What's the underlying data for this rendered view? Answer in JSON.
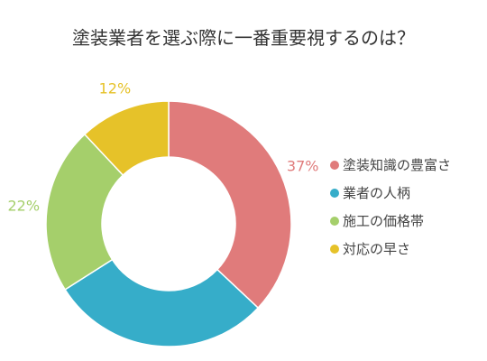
{
  "chart_data": {
    "type": "pie",
    "title": "塗装業者を選ぶ際に一番重要視するのは？",
    "categories": [
      "塗装知識の豊富さ",
      "業者の人柄",
      "施工の価格帯",
      "対応の早さ"
    ],
    "values": [
      37,
      29,
      22,
      12
    ],
    "labels": [
      "37%",
      "29%",
      "22%",
      "12%"
    ],
    "colors": [
      "#e07b7b",
      "#36adc9",
      "#a5cf6b",
      "#e6c229"
    ],
    "donut": true,
    "legend_position": "right"
  }
}
